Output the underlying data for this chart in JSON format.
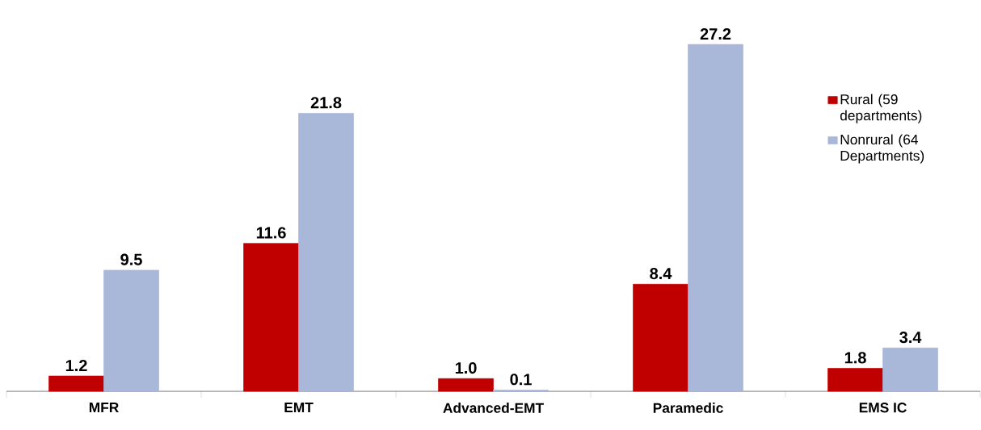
{
  "chart_data": {
    "type": "bar",
    "categories": [
      "MFR",
      "EMT",
      "Advanced-EMT",
      "Paramedic",
      "EMS IC"
    ],
    "series": [
      {
        "name": "Rural (59 departments)",
        "color": "#c00000",
        "values": [
          1.2,
          11.6,
          1.0,
          8.4,
          1.8
        ],
        "value_labels": [
          "1.2",
          "11.6",
          "1.0",
          "8.4",
          "1.8"
        ]
      },
      {
        "name": "Nonrural (64 Departments)",
        "color": "#a9b7d9",
        "values": [
          9.5,
          21.8,
          0.1,
          27.2,
          3.4
        ],
        "value_labels": [
          "9.5",
          "21.8",
          "0.1",
          "27.2",
          "3.4"
        ]
      }
    ],
    "legend": "right",
    "grid": false
  }
}
